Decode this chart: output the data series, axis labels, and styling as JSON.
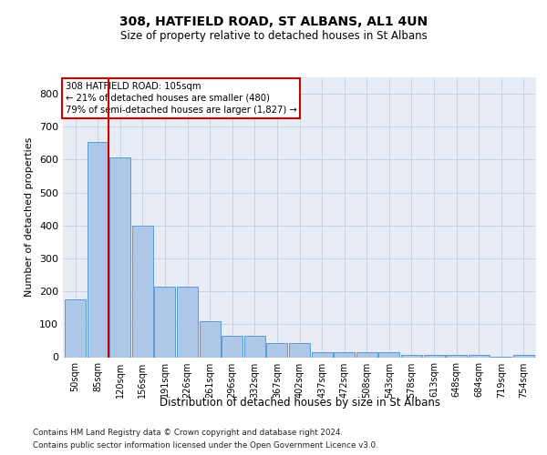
{
  "title1": "308, HATFIELD ROAD, ST ALBANS, AL1 4UN",
  "title2": "Size of property relative to detached houses in St Albans",
  "xlabel": "Distribution of detached houses by size in St Albans",
  "ylabel": "Number of detached properties",
  "categories": [
    "50sqm",
    "85sqm",
    "120sqm",
    "156sqm",
    "191sqm",
    "226sqm",
    "261sqm",
    "296sqm",
    "332sqm",
    "367sqm",
    "402sqm",
    "437sqm",
    "472sqm",
    "508sqm",
    "543sqm",
    "578sqm",
    "613sqm",
    "648sqm",
    "684sqm",
    "719sqm",
    "754sqm"
  ],
  "values": [
    175,
    655,
    607,
    400,
    215,
    215,
    108,
    65,
    65,
    42,
    42,
    16,
    16,
    16,
    14,
    7,
    7,
    7,
    7,
    2,
    7
  ],
  "bar_color": "#aec6e8",
  "bar_edge_color": "#5b9bd5",
  "vline_color": "#cc0000",
  "vline_xindex": 1.5,
  "annotation_line1": "308 HATFIELD ROAD: 105sqm",
  "annotation_line2": "← 21% of detached houses are smaller (480)",
  "annotation_line3": "79% of semi-detached houses are larger (1,827) →",
  "footnote1": "Contains HM Land Registry data © Crown copyright and database right 2024.",
  "footnote2": "Contains public sector information licensed under the Open Government Licence v3.0.",
  "ylim": [
    0,
    850
  ],
  "yticks": [
    0,
    100,
    200,
    300,
    400,
    500,
    600,
    700,
    800
  ],
  "grid_color": "#c8d4e3",
  "bg_color": "#e8edf5",
  "ann_box_edge": "#cc0000",
  "ann_box_face": "#ffffff"
}
